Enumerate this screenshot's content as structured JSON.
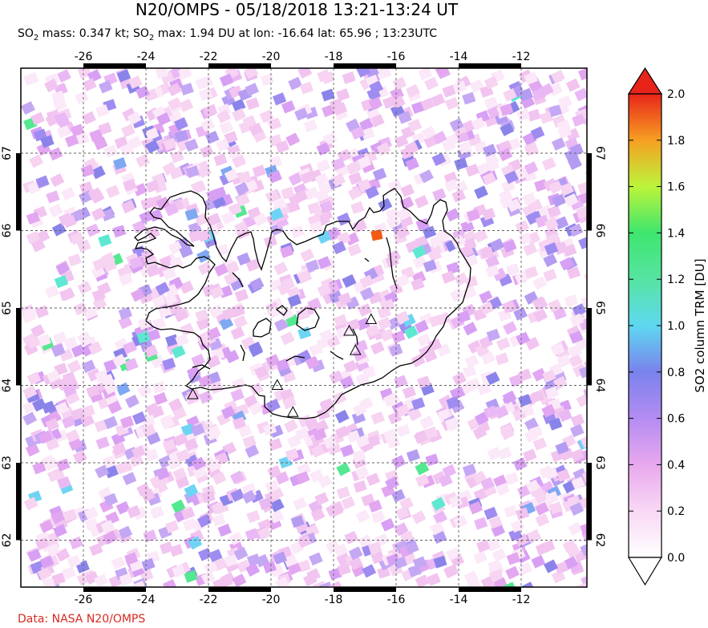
{
  "title": "N20/OMPS - 05/18/2018 13:21-13:24 UT",
  "subtitle": {
    "mass_prefix": "SO",
    "mass_sub": "2",
    "mass_text": " mass: 0.347 kt; SO",
    "max_sub": "2",
    "max_text": " max: 1.94 DU at lon: -16.64 lat: 65.96 ; 13:23UTC"
  },
  "credit": "Data: NASA N20/OMPS",
  "map": {
    "lon_labels": [
      "-26",
      "-24",
      "-22",
      "-20",
      "-18",
      "-16",
      "-14",
      "-12"
    ],
    "lon_values": [
      -26,
      -24,
      -22,
      -20,
      -18,
      -16,
      -14,
      -12
    ],
    "lat_labels": [
      "67",
      "66",
      "65",
      "64",
      "63",
      "62"
    ],
    "lat_values": [
      67,
      66,
      65,
      64,
      63,
      62
    ],
    "volcano_icon": "triangle-outline",
    "volcanoes": [
      {
        "lon": -22.5,
        "lat": 63.88
      },
      {
        "lon": -19.8,
        "lat": 64.0
      },
      {
        "lon": -19.3,
        "lat": 63.65
      },
      {
        "lon": -17.5,
        "lat": 64.7
      },
      {
        "lon": -17.3,
        "lat": 64.45
      },
      {
        "lon": -16.8,
        "lat": 64.85
      }
    ],
    "max_location": {
      "lon": -16.64,
      "lat": 65.96,
      "value": 1.94
    }
  },
  "colorbar": {
    "title": "SO2 column TRM [DU]",
    "tick_labels": [
      "2.0",
      "1.8",
      "1.6",
      "1.4",
      "1.2",
      "1.0",
      "0.8",
      "0.6",
      "0.4",
      "0.2",
      "0.0"
    ],
    "min": 0.0,
    "max": 2.0,
    "colors": [
      "#ffffff",
      "#f8d8f4",
      "#e8a8ee",
      "#b48cf2",
      "#7a82ec",
      "#5ed8f0",
      "#3ee66e",
      "#bcf43a",
      "#f6e62a",
      "#f77b1c",
      "#e8241a"
    ]
  }
}
